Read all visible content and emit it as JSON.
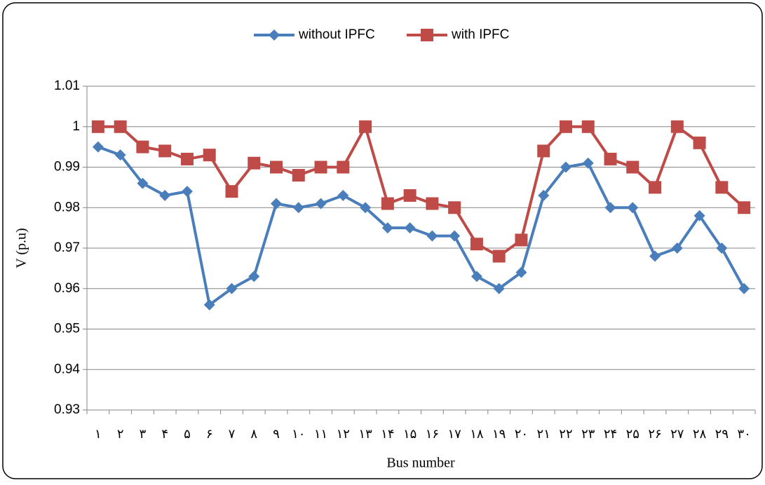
{
  "chart_data": {
    "type": "line",
    "x_label": "Bus number",
    "y_label": "V (p.u)",
    "categories": [
      "۱",
      "۲",
      "۳",
      "۴",
      "۵",
      "۶",
      "۷",
      "۸",
      "۹",
      "۱۰",
      "۱۱",
      "۱۲",
      "۱۳",
      "۱۴",
      "۱۵",
      "۱۶",
      "۱۷",
      "۱۸",
      "۱۹",
      "۲۰",
      "۲۱",
      "۲۲",
      "۲۳",
      "۲۴",
      "۲۵",
      "۲۶",
      "۲۷",
      "۲۸",
      "۲۹",
      "۳۰"
    ],
    "series": [
      {
        "name": "without IPFC",
        "color": "#4a7ebb",
        "marker": "diamond",
        "values": [
          0.995,
          0.993,
          0.986,
          0.983,
          0.984,
          0.956,
          0.96,
          0.963,
          0.981,
          0.98,
          0.981,
          0.983,
          0.98,
          0.975,
          0.975,
          0.973,
          0.973,
          0.963,
          0.96,
          0.964,
          0.983,
          0.99,
          0.991,
          0.98,
          0.98,
          0.968,
          0.97,
          0.978,
          0.97,
          0.96
        ]
      },
      {
        "name": "with IPFC",
        "color": "#be4b48",
        "marker": "square",
        "values": [
          1.0,
          1.0,
          0.995,
          0.994,
          0.992,
          0.993,
          0.984,
          0.991,
          0.99,
          0.988,
          0.99,
          0.99,
          1.0,
          0.981,
          0.983,
          0.981,
          0.98,
          0.971,
          0.968,
          0.972,
          0.994,
          1.0,
          1.0,
          0.992,
          0.99,
          0.985,
          1.0,
          0.996,
          0.985,
          0.98
        ]
      }
    ],
    "ylim": [
      0.93,
      1.01
    ],
    "yticks": [
      0.93,
      0.94,
      0.95,
      0.96,
      0.97,
      0.98,
      0.99,
      1,
      1.01
    ],
    "grid": true,
    "legend": "top"
  }
}
